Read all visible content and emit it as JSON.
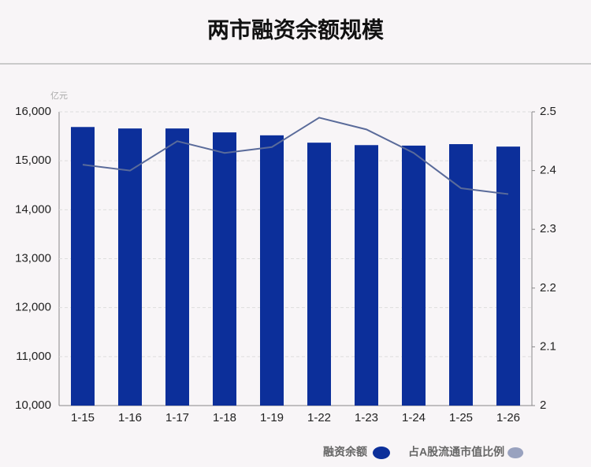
{
  "chart_data": {
    "type": "bar-line",
    "title": "两市融资余额规模",
    "y_unit": "亿元",
    "categories": [
      "1-15",
      "1-16",
      "1-17",
      "1-18",
      "1-19",
      "1-22",
      "1-23",
      "1-24",
      "1-25",
      "1-26"
    ],
    "series": [
      {
        "name": "融资余额",
        "type": "bar",
        "color": "#0c2f9a",
        "axis": "y",
        "values": [
          15690,
          15660,
          15660,
          15580,
          15520,
          15370,
          15320,
          15310,
          15340,
          15290
        ]
      },
      {
        "name": "占A股流通市值比例",
        "type": "line",
        "color": "#5a6b9a",
        "axis": "y2",
        "values": [
          2.41,
          2.4,
          2.45,
          2.43,
          2.44,
          2.49,
          2.47,
          2.43,
          2.37,
          2.36
        ]
      }
    ],
    "ylim": [
      10000,
      16000
    ],
    "yticks": [
      {
        "value": 10000,
        "label": "10,000"
      },
      {
        "value": 11000,
        "label": "11,000"
      },
      {
        "value": 12000,
        "label": "12,000"
      },
      {
        "value": 13000,
        "label": "13,000"
      },
      {
        "value": 14000,
        "label": "14,000"
      },
      {
        "value": 15000,
        "label": "15,000"
      },
      {
        "value": 16000,
        "label": "16,000"
      }
    ],
    "y2lim": [
      2,
      2.5
    ],
    "y2ticks": [
      2,
      2.1,
      2.2,
      2.3,
      2.4,
      2.5
    ],
    "grid": true
  }
}
